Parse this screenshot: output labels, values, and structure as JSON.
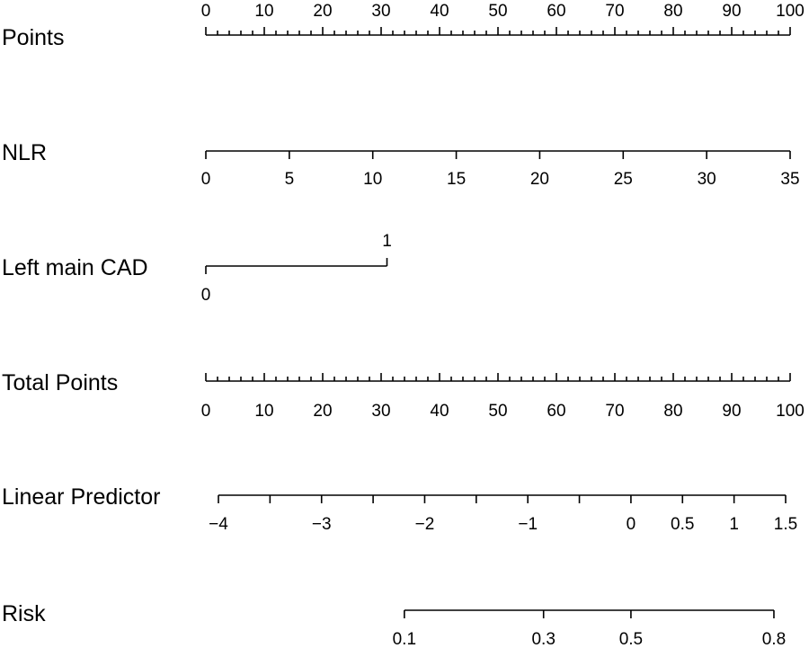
{
  "chart_data": {
    "type": "nomogram",
    "rows": [
      {
        "id": "points",
        "label": "Points",
        "min": 0,
        "max": 100,
        "tick_values": [
          0,
          10,
          20,
          30,
          40,
          50,
          60,
          70,
          80,
          90,
          100
        ],
        "minor_step": 2,
        "tick_labels": [
          "0",
          "10",
          "20",
          "30",
          "40",
          "50",
          "60",
          "70",
          "80",
          "90",
          "100"
        ]
      },
      {
        "id": "nlr",
        "label": "NLR",
        "min": 0,
        "max": 35,
        "tick_values": [
          0,
          5,
          10,
          15,
          20,
          25,
          30,
          35
        ],
        "tick_labels": [
          "0",
          "5",
          "10",
          "15",
          "20",
          "25",
          "30",
          "35"
        ]
      },
      {
        "id": "left_main_cad",
        "label": "Left main CAD",
        "levels": [
          "0",
          "1"
        ],
        "points_at_level": [
          0,
          31
        ]
      },
      {
        "id": "total_points",
        "label": "Total Points",
        "min": 0,
        "max": 100,
        "tick_values": [
          0,
          10,
          20,
          30,
          40,
          50,
          60,
          70,
          80,
          90,
          100
        ],
        "minor_step": 2,
        "tick_labels": [
          "0",
          "10",
          "20",
          "30",
          "40",
          "50",
          "60",
          "70",
          "80",
          "90",
          "100"
        ]
      },
      {
        "id": "linear_predictor",
        "label": "Linear Predictor",
        "min": -4,
        "max": 1.5,
        "tick_values": [
          -4,
          -3.5,
          -3,
          -2.5,
          -2,
          -1.5,
          -1,
          -0.5,
          0,
          0.5,
          1,
          1.5
        ],
        "labeled_values": [
          -4,
          -3,
          -2,
          -1,
          0,
          0.5,
          1,
          1.5
        ],
        "tick_labels": [
          "−4",
          "−3",
          "−2",
          "−1",
          "0",
          "0.5",
          "1",
          "1.5"
        ]
      },
      {
        "id": "risk",
        "label": "Risk",
        "min": 0.1,
        "max": 0.8,
        "tick_values": [
          0.1,
          0.3,
          0.5,
          0.8
        ],
        "tick_labels": [
          "0.1",
          "0.3",
          "0.5",
          "0.8"
        ]
      }
    ]
  }
}
